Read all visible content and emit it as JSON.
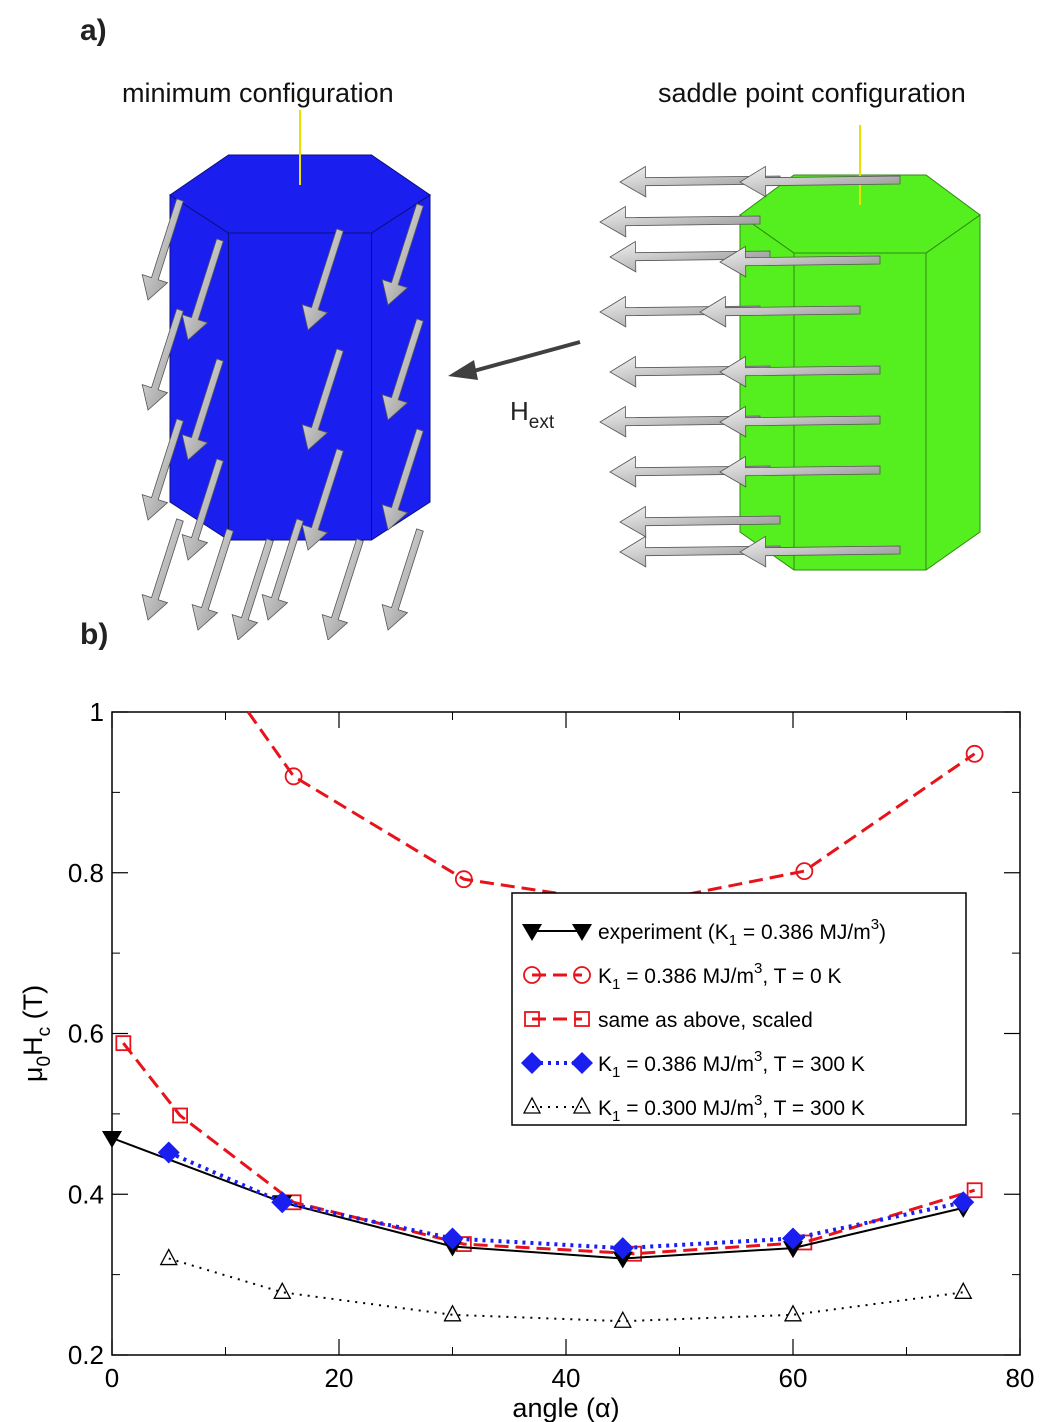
{
  "panel_a": {
    "label": "a)",
    "left_title": "minimum configuration",
    "right_title": "saddle point configuration",
    "field_label": "H",
    "field_subscript": "ext",
    "colors": {
      "left_prism": "#1a1ff0",
      "right_prism": "#55ee1f",
      "arrow": "#b8b8b8",
      "field_arrow": "#404040"
    }
  },
  "panel_b": {
    "label": "b)"
  },
  "chart_data": {
    "type": "line",
    "xlabel": "angle (α)",
    "ylabel_main": "μ",
    "ylabel_sub0": "0",
    "ylabel_mid": "H",
    "ylabel_sub1": "c",
    "ylabel_tail": " (T)",
    "xlim": [
      0,
      80
    ],
    "ylim": [
      0.2,
      1.0
    ],
    "x_ticks": [
      0,
      20,
      40,
      60,
      80
    ],
    "x_tick_labels": [
      "0",
      "20",
      "40",
      "60",
      "80"
    ],
    "y_ticks": [
      0.2,
      0.4,
      0.6,
      0.8,
      1.0
    ],
    "y_tick_labels": [
      "0.2",
      "0.4",
      "0.6",
      "0.8",
      "1"
    ],
    "legend_position": "center-right",
    "series": [
      {
        "id": "exp",
        "name_html": "experiment (K<tspan dy='6' font-size='14'>1</tspan><tspan dy='-6'> = 0.386 MJ/m</tspan><tspan dy='-10' font-size='14'>3</tspan><tspan dy='10'>)</tspan>",
        "name": "experiment (K1 = 0.386 MJ/m3)",
        "color": "#000000",
        "dash": "",
        "width": 2,
        "marker": "tri-down-filled",
        "x": [
          0,
          15,
          30,
          45,
          60,
          75
        ],
        "y": [
          0.47,
          0.39,
          0.335,
          0.32,
          0.333,
          0.383
        ]
      },
      {
        "id": "t0",
        "name": "K1 = 0.386 MJ/m3, T = 0 K",
        "color": "#e8121a",
        "dash": "14,7",
        "width": 3,
        "marker": "circle-open",
        "x": [
          12,
          16,
          31,
          46,
          61,
          76
        ],
        "y": [
          1.0,
          0.92,
          0.792,
          0.76,
          0.802,
          0.948
        ],
        "marker_skip_first": true
      },
      {
        "id": "scaled",
        "name": "same as above, scaled",
        "color": "#e8121a",
        "dash": "14,7",
        "width": 3,
        "marker": "square-open",
        "x": [
          1,
          6,
          16,
          31,
          46,
          61,
          76
        ],
        "y": [
          0.588,
          0.498,
          0.39,
          0.338,
          0.326,
          0.34,
          0.405
        ]
      },
      {
        "id": "t300",
        "name": "K1 = 0.386 MJ/m3, T = 300 K",
        "color": "#1a1ff0",
        "dash": "3,5",
        "width": 4,
        "marker": "diamond-filled",
        "x": [
          5,
          15,
          30,
          45,
          60,
          75
        ],
        "y": [
          0.452,
          0.39,
          0.345,
          0.333,
          0.345,
          0.39
        ]
      },
      {
        "id": "k300",
        "name": "K1 = 0.300 MJ/m3, T = 300 K",
        "color": "#000000",
        "dash": "2,6",
        "width": 2,
        "marker": "tri-up-open",
        "x": [
          5,
          15,
          30,
          45,
          60,
          75
        ],
        "y": [
          0.32,
          0.278,
          0.25,
          0.242,
          0.25,
          0.278
        ]
      }
    ],
    "legend": [
      {
        "pre": "experiment (K",
        "sub": "1",
        "mid": " = 0.386 MJ/m",
        "sup": "3",
        "post": ")"
      },
      {
        "pre": "K",
        "sub": "1",
        "mid": " = 0.386 MJ/m",
        "sup": "3",
        "post": ", T = 0 K"
      },
      {
        "pre": "same as above, scaled",
        "sub": "",
        "mid": "",
        "sup": "",
        "post": ""
      },
      {
        "pre": "K",
        "sub": "1",
        "mid": " = 0.386 MJ/m",
        "sup": "3",
        "post": ", T = 300 K"
      },
      {
        "pre": "K",
        "sub": "1",
        "mid": " = 0.300 MJ/m",
        "sup": "3",
        "post": ", T = 300 K"
      }
    ]
  }
}
